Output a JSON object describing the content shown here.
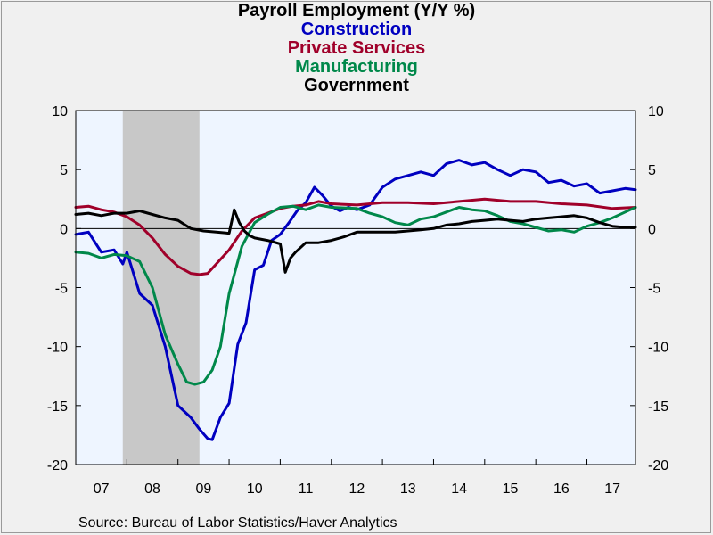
{
  "chart_data": {
    "type": "line",
    "title": "Payroll Employment (Y/Y %)",
    "source": "Source:  Bureau of Labor Statistics/Haver Analytics",
    "x_tick_labels": [
      "07",
      "08",
      "09",
      "10",
      "11",
      "12",
      "13",
      "14",
      "15",
      "16",
      "17"
    ],
    "xlim": [
      2007.0,
      2017.95
    ],
    "ylim": [
      -20,
      10
    ],
    "y_ticks": [
      10,
      5,
      0,
      -5,
      -10,
      -15,
      -20
    ],
    "recession_shading": {
      "start": 2007.92,
      "end": 2009.42,
      "color": "#c8c8c8"
    },
    "plot_background": "#eef5ff",
    "zero_line": true,
    "legend_placement": "top-center, stacked under title",
    "series": [
      {
        "name": "Construction",
        "color": "#0000c0",
        "x": [
          2007.0,
          2007.25,
          2007.5,
          2007.75,
          2007.92,
          2008.0,
          2008.25,
          2008.5,
          2008.75,
          2009.0,
          2009.25,
          2009.42,
          2009.58,
          2009.67,
          2009.83,
          2010.0,
          2010.17,
          2010.33,
          2010.5,
          2010.67,
          2010.83,
          2011.0,
          2011.17,
          2011.33,
          2011.5,
          2011.67,
          2011.83,
          2012.0,
          2012.17,
          2012.33,
          2012.5,
          2012.75,
          2013.0,
          2013.25,
          2013.5,
          2013.75,
          2014.0,
          2014.25,
          2014.5,
          2014.75,
          2015.0,
          2015.25,
          2015.5,
          2015.75,
          2016.0,
          2016.25,
          2016.5,
          2016.75,
          2017.0,
          2017.25,
          2017.5,
          2017.75,
          2017.95
        ],
        "y": [
          -0.5,
          -0.3,
          -2.0,
          -1.8,
          -3.0,
          -2.0,
          -5.5,
          -6.5,
          -10.0,
          -15.0,
          -16.0,
          -17.0,
          -17.8,
          -17.9,
          -16.0,
          -14.8,
          -9.8,
          -8.0,
          -3.5,
          -3.1,
          -1.0,
          -0.5,
          0.5,
          1.5,
          2.2,
          3.5,
          2.8,
          1.9,
          1.5,
          1.8,
          1.6,
          2.0,
          3.5,
          4.2,
          4.5,
          4.8,
          4.5,
          5.5,
          5.8,
          5.4,
          5.6,
          5.0,
          4.5,
          5.0,
          4.8,
          3.9,
          4.1,
          3.6,
          3.8,
          3.0,
          3.2,
          3.4,
          3.3
        ]
      },
      {
        "name": "Private Services",
        "color": "#a0002a",
        "x": [
          2007.0,
          2007.25,
          2007.5,
          2007.75,
          2008.0,
          2008.25,
          2008.5,
          2008.75,
          2009.0,
          2009.25,
          2009.42,
          2009.58,
          2009.75,
          2010.0,
          2010.25,
          2010.5,
          2010.75,
          2011.0,
          2011.25,
          2011.5,
          2011.75,
          2012.0,
          2012.5,
          2013.0,
          2013.5,
          2014.0,
          2014.5,
          2015.0,
          2015.5,
          2016.0,
          2016.5,
          2017.0,
          2017.5,
          2017.95
        ],
        "y": [
          1.8,
          1.9,
          1.6,
          1.4,
          1.0,
          0.3,
          -0.8,
          -2.2,
          -3.2,
          -3.8,
          -3.9,
          -3.8,
          -3.0,
          -1.8,
          -0.2,
          0.9,
          1.3,
          1.7,
          1.9,
          2.0,
          2.3,
          2.1,
          2.0,
          2.2,
          2.2,
          2.1,
          2.3,
          2.5,
          2.3,
          2.3,
          2.1,
          2.0,
          1.7,
          1.8
        ]
      },
      {
        "name": "Manufacturing",
        "color": "#00884a",
        "x": [
          2007.0,
          2007.25,
          2007.5,
          2007.75,
          2008.0,
          2008.25,
          2008.5,
          2008.75,
          2009.0,
          2009.17,
          2009.33,
          2009.5,
          2009.67,
          2009.83,
          2010.0,
          2010.25,
          2010.5,
          2010.75,
          2011.0,
          2011.25,
          2011.5,
          2011.75,
          2012.0,
          2012.5,
          2012.75,
          2013.0,
          2013.25,
          2013.5,
          2013.75,
          2014.0,
          2014.25,
          2014.5,
          2014.75,
          2015.0,
          2015.25,
          2015.5,
          2015.75,
          2016.0,
          2016.25,
          2016.5,
          2016.75,
          2017.0,
          2017.25,
          2017.5,
          2017.75,
          2017.95
        ],
        "y": [
          -2.0,
          -2.1,
          -2.5,
          -2.2,
          -2.3,
          -2.8,
          -5.0,
          -9.0,
          -11.5,
          -13.0,
          -13.2,
          -13.0,
          -12.0,
          -10.0,
          -5.5,
          -1.5,
          0.5,
          1.2,
          1.8,
          1.9,
          1.6,
          2.0,
          1.8,
          1.7,
          1.3,
          1.0,
          0.5,
          0.3,
          0.8,
          1.0,
          1.4,
          1.8,
          1.6,
          1.5,
          1.1,
          0.6,
          0.4,
          0.1,
          -0.2,
          -0.1,
          -0.3,
          0.2,
          0.5,
          0.9,
          1.4,
          1.8
        ]
      },
      {
        "name": "Government",
        "color": "#000000",
        "x": [
          2007.0,
          2007.25,
          2007.5,
          2007.75,
          2008.0,
          2008.25,
          2008.5,
          2008.75,
          2009.0,
          2009.25,
          2009.5,
          2009.75,
          2010.0,
          2010.1,
          2010.2,
          2010.3,
          2010.4,
          2010.5,
          2010.75,
          2011.0,
          2011.1,
          2011.2,
          2011.3,
          2011.5,
          2011.75,
          2012.0,
          2012.25,
          2012.5,
          2012.75,
          2013.0,
          2013.25,
          2013.5,
          2013.75,
          2014.0,
          2014.25,
          2014.5,
          2014.75,
          2015.0,
          2015.25,
          2015.5,
          2015.75,
          2016.0,
          2016.25,
          2016.5,
          2016.75,
          2017.0,
          2017.25,
          2017.5,
          2017.75,
          2017.95
        ],
        "y": [
          1.2,
          1.3,
          1.1,
          1.3,
          1.3,
          1.5,
          1.2,
          0.9,
          0.7,
          0.0,
          -0.2,
          -0.3,
          -0.4,
          1.6,
          0.5,
          -0.2,
          -0.6,
          -0.8,
          -1.0,
          -1.3,
          -3.7,
          -2.5,
          -2.0,
          -1.2,
          -1.2,
          -1.0,
          -0.7,
          -0.3,
          -0.3,
          -0.3,
          -0.3,
          -0.2,
          -0.1,
          0.0,
          0.3,
          0.4,
          0.6,
          0.7,
          0.8,
          0.7,
          0.6,
          0.8,
          0.9,
          1.0,
          1.1,
          0.9,
          0.5,
          0.2,
          0.1,
          0.1
        ]
      }
    ]
  }
}
